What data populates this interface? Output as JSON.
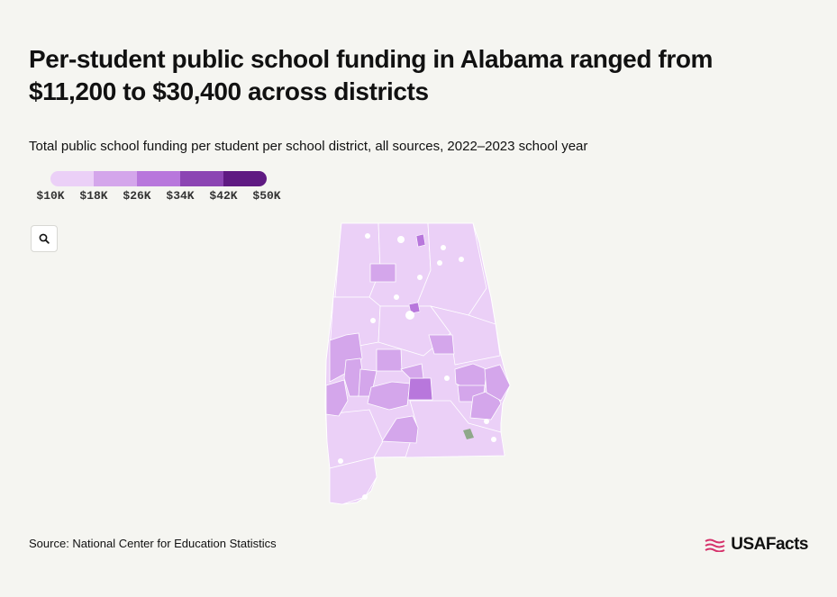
{
  "title": "Per-student public school funding in Alabama ranged from $11,200 to $30,400 across districts",
  "subtitle": "Total public school funding per student per school district, all sources, 2022–2023 school year",
  "legend": {
    "ticks": [
      "$10K",
      "$18K",
      "$26K",
      "$34K",
      "$42K",
      "$50K"
    ],
    "colors": [
      "#ebd0f7",
      "#d4a6eb",
      "#b877dc",
      "#8c45b3",
      "#5f1a82"
    ]
  },
  "zoom_icon": "search-icon",
  "map": {
    "state": "Alabama",
    "base_color": "#ebd0f7",
    "border_color": "#ffffff",
    "no_data_color": "#8fa88a",
    "district_fills": {
      "state_base": 0,
      "northwest": 0,
      "north_central": 0,
      "northeast": 0,
      "central_west": 0,
      "central": 0,
      "central_east": 0,
      "south": 0,
      "southwest": 0,
      "mobile": 0,
      "lawrence_area": 1,
      "clay_area": 1,
      "pickens_area": 1,
      "greene_area": 1,
      "hale_area": 1,
      "perry_area": 1,
      "marengo_area": 1,
      "dallas_area": 1,
      "lowndes_area": 2,
      "sumter_area": 1,
      "wilcox_area": 1,
      "monroe_area": 1,
      "macon_area": 1,
      "bullock_area": 1,
      "russell_area": 1,
      "north_small_1": 2,
      "north_small_2": 2
    }
  },
  "source": "Source: National Center for Education Statistics",
  "brand": {
    "name": "USAFacts",
    "color": "#d6336c"
  }
}
